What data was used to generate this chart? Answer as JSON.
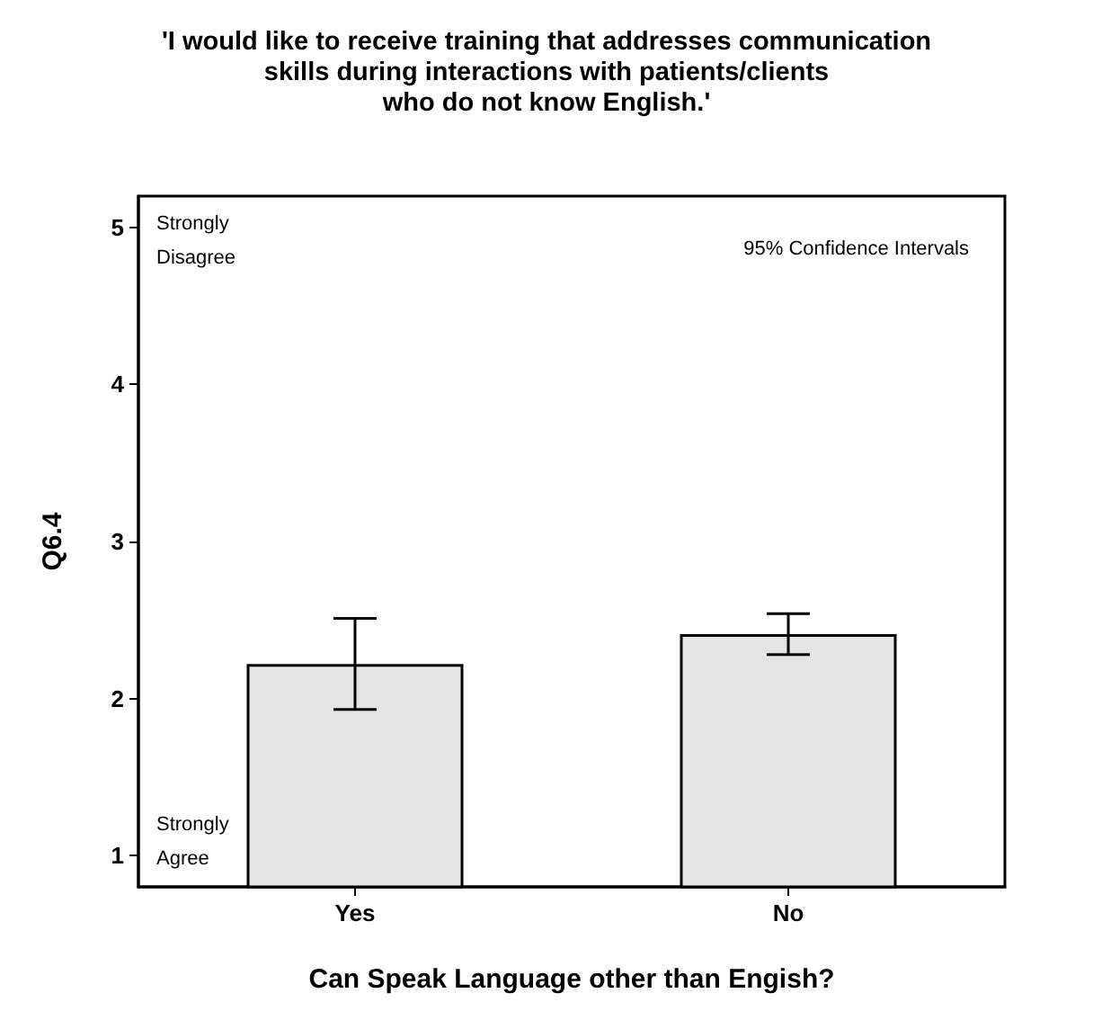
{
  "chart_data": {
    "type": "bar",
    "title": "'I would like to receive training that addresses communication\nskills during interactions with patients/clients\nwho do not know English.'",
    "xlabel": "Can Speak Language other than Engish?",
    "ylabel": "Q6.4",
    "categories": [
      "Yes",
      "No"
    ],
    "values": [
      2.22,
      2.41
    ],
    "color": "#e4e4e4",
    "errors": [
      [
        1.93,
        2.51
      ],
      [
        2.28,
        2.54
      ]
    ],
    "ylim": [
      0.8,
      5.2
    ],
    "yticks": [
      1,
      2,
      3,
      4,
      5
    ],
    "grid": false,
    "annotations": [
      "Strongly\nDisagree",
      "Strongly\nAgree",
      "95% Confidence Intervals"
    ]
  }
}
